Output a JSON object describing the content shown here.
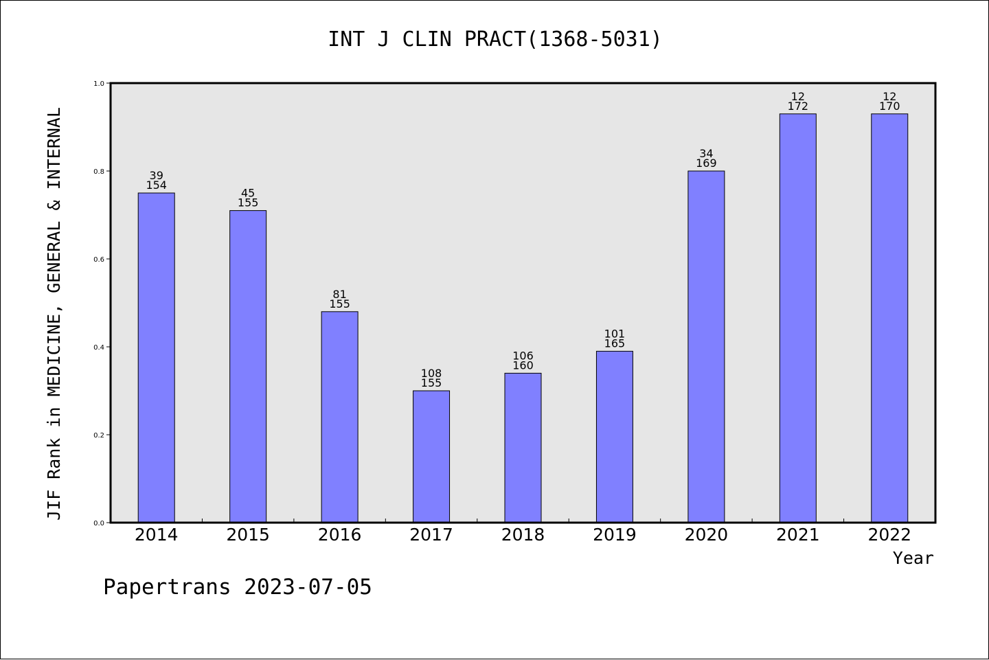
{
  "chart_data": {
    "type": "bar",
    "title": "INT J CLIN PRACT(1368-5031)",
    "xlabel": "Year",
    "ylabel": "JIF Rank in MEDICINE, GENERAL & INTERNAL",
    "ylim": [
      0,
      1
    ],
    "yticks": [
      "0.0",
      "0.2",
      "0.4",
      "0.6",
      "0.8",
      "1.0"
    ],
    "grid": false,
    "categories": [
      "2014",
      "2015",
      "2016",
      "2017",
      "2018",
      "2019",
      "2020",
      "2021",
      "2022"
    ],
    "values": [
      0.75,
      0.71,
      0.48,
      0.3,
      0.34,
      0.39,
      0.8,
      0.93,
      0.93
    ],
    "bar_labels": [
      [
        "39",
        "154"
      ],
      [
        "45",
        "155"
      ],
      [
        "81",
        "155"
      ],
      [
        "108",
        "155"
      ],
      [
        "106",
        "160"
      ],
      [
        "101",
        "165"
      ],
      [
        "34",
        "169"
      ],
      [
        "12",
        "172"
      ],
      [
        "12",
        "170"
      ]
    ],
    "colors": {
      "bar": "#8080ff",
      "plot_background": "#e6e6e6",
      "axis": "#000000"
    }
  },
  "footer": "Papertrans 2023-07-05"
}
